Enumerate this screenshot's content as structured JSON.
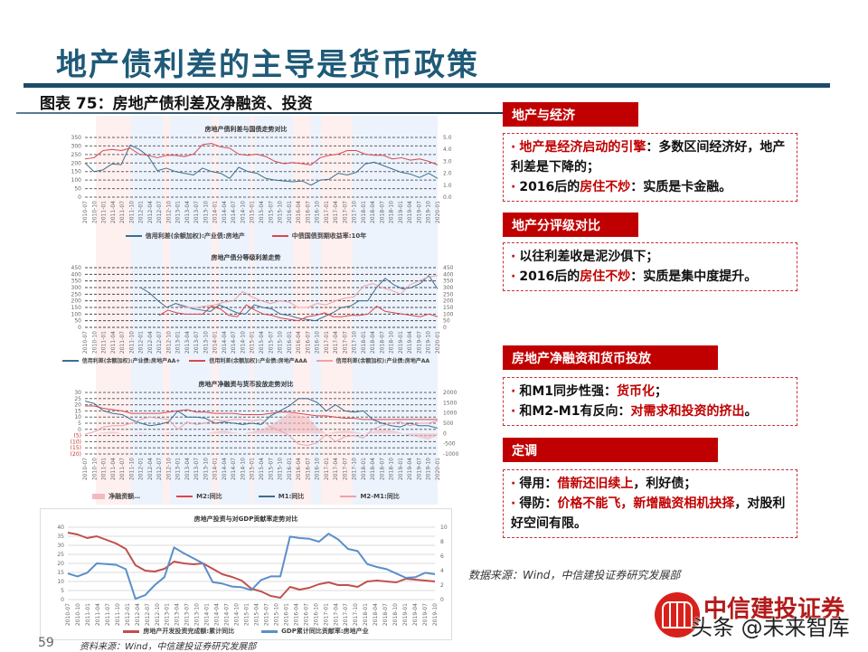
{
  "slide": {
    "title": "地产债利差的主导是货币政策",
    "figure_caption": "图表 75：房地产债利差及净融资、投资",
    "page_number": "59",
    "source_bottom": "资料来源：Wind，中信建投证券研究发展部",
    "source_right": "数据来源：Wind，中信建投证券研究发展部",
    "logo_text": "中信建投证券",
    "watermark": "头条 @未来智库"
  },
  "colors": {
    "title_blue": "#1f5a78",
    "rule_navy": "#1c4c68",
    "header_red": "#c00000",
    "series_blue": "#3d6e8f",
    "series_red": "#d9474f",
    "series_pink": "#f0a0a8",
    "series_blue_light": "#5b8fc9"
  },
  "sections": [
    {
      "header": "地产与经济",
      "bullets": [
        {
          "segments": [
            {
              "text": "地产是经济启动的引擎",
              "highlight": true
            },
            {
              "text": "：多数区间经济好，地产利差是下降的；",
              "highlight": false
            }
          ]
        },
        {
          "segments": [
            {
              "text": "2016后的",
              "highlight": false
            },
            {
              "text": "房住不炒",
              "highlight": true
            },
            {
              "text": "：实质是卡金融。",
              "highlight": false
            }
          ]
        }
      ]
    },
    {
      "header": "地产分评级对比",
      "bullets": [
        {
          "segments": [
            {
              "text": "以往利差收是泥沙俱下；",
              "highlight": false
            }
          ]
        },
        {
          "segments": [
            {
              "text": "2016后的",
              "highlight": false
            },
            {
              "text": "房住不炒",
              "highlight": true
            },
            {
              "text": "：实质是集中度提升。",
              "highlight": false
            }
          ]
        }
      ]
    },
    {
      "header": "房地产净融资和货币投放",
      "bullets": [
        {
          "segments": [
            {
              "text": "和M1同步性强：",
              "highlight": false
            },
            {
              "text": "货币化",
              "highlight": true
            },
            {
              "text": "；",
              "highlight": false
            }
          ]
        },
        {
          "segments": [
            {
              "text": "和M2-M1有反向：",
              "highlight": false
            },
            {
              "text": "对需求和投资的挤出",
              "highlight": true
            },
            {
              "text": "。",
              "highlight": false
            }
          ]
        }
      ]
    },
    {
      "header": "定调",
      "bullets": [
        {
          "segments": [
            {
              "text": "得用：",
              "highlight": false
            },
            {
              "text": "借新还旧续上",
              "highlight": true
            },
            {
              "text": "，利好债；",
              "highlight": false
            }
          ]
        },
        {
          "segments": [
            {
              "text": "得防：",
              "highlight": false
            },
            {
              "text": "价格不能飞，新增融资相机抉择",
              "highlight": true
            },
            {
              "text": "，对股利好空间有限。",
              "highlight": false
            }
          ]
        }
      ]
    }
  ],
  "chart_data": [
    {
      "type": "line",
      "title": "房地产债利差与国债走势对比",
      "x_ticks": [
        "2010-07",
        "2010-10",
        "2011-01",
        "2011-04",
        "2011-07",
        "2011-10",
        "2012-01",
        "2012-04",
        "2012-07",
        "2012-10",
        "2013-01",
        "2013-04",
        "2013-07",
        "2013-10",
        "2014-01",
        "2014-04",
        "2014-07",
        "2014-10",
        "2015-01",
        "2015-04",
        "2015-07",
        "2015-10",
        "2016-01",
        "2016-04",
        "2016-07",
        "2016-10",
        "2017-01",
        "2017-04",
        "2017-07",
        "2017-10",
        "2018-01",
        "2018-04",
        "2018-07",
        "2018-10",
        "2019-01",
        "2019-04",
        "2019-07",
        "2019-10",
        "2020-01"
      ],
      "y_left": {
        "min": 0,
        "max": 350,
        "ticks": [
          0,
          50,
          100,
          150,
          200,
          250,
          300,
          350
        ]
      },
      "y_right": {
        "min": 0,
        "max": 5,
        "ticks": [
          "0.0",
          "1.0",
          "2.0",
          "3.0",
          "4.0",
          "5.0"
        ]
      },
      "series": [
        {
          "name": "信用利差(余额加权):产业债:房地产",
          "axis": "left",
          "values": [
            200,
            150,
            160,
            195,
            190,
            305,
            280,
            240,
            155,
            170,
            150,
            140,
            130,
            170,
            150,
            140,
            110,
            175,
            150,
            140,
            110,
            100,
            95,
            90,
            95,
            70,
            100,
            105,
            140,
            130,
            145,
            195,
            205,
            185,
            165,
            145,
            135,
            115,
            140,
            110
          ]
        },
        {
          "name": "中债国债到期收益率:10年",
          "axis": "right",
          "values": [
            3.2,
            3.3,
            3.9,
            4.0,
            3.9,
            4.1,
            3.6,
            3.5,
            3.3,
            3.5,
            3.5,
            3.4,
            3.6,
            4.4,
            4.5,
            4.2,
            4.1,
            3.6,
            3.5,
            3.6,
            3.4,
            3.0,
            2.8,
            2.9,
            2.8,
            2.7,
            3.3,
            3.5,
            3.6,
            3.9,
            3.9,
            3.6,
            3.5,
            3.5,
            3.2,
            3.3,
            3.1,
            3.2,
            3.0,
            2.7
          ]
        }
      ],
      "grid": true,
      "legend_position": "bottom"
    },
    {
      "type": "line",
      "title": "房地产债分等级利差走势",
      "x_ticks": [
        "2010-07",
        "2010-10",
        "2011-01",
        "2011-04",
        "2011-07",
        "2011-10",
        "2012-01",
        "2012-04",
        "2012-07",
        "2012-10",
        "2013-01",
        "2013-04",
        "2013-07",
        "2013-10",
        "2014-01",
        "2014-04",
        "2014-07",
        "2014-10",
        "2015-01",
        "2015-04",
        "2015-07",
        "2015-10",
        "2016-01",
        "2016-04",
        "2016-07",
        "2016-10",
        "2017-01",
        "2017-04",
        "2017-07",
        "2017-10",
        "2018-01",
        "2018-04",
        "2018-07",
        "2018-10",
        "2019-01",
        "2019-04",
        "2019-07",
        "2019-10",
        "2020-01"
      ],
      "y_left": {
        "min": 0,
        "max": 450,
        "ticks": [
          0,
          50,
          100,
          150,
          200,
          250,
          300,
          350,
          400,
          450
        ]
      },
      "y_right": {
        "min": 0,
        "max": 450,
        "ticks": [
          0,
          50,
          100,
          150,
          200,
          250,
          300,
          350,
          400,
          450
        ]
      },
      "series": [
        {
          "name": "信用利差(余额加权):产业债:房地产AA+",
          "axis": "left",
          "start_index": 6,
          "values": [
            300,
            260,
            200,
            150,
            180,
            160,
            140,
            130,
            120,
            170,
            140,
            110,
            100,
            170,
            150,
            140,
            100,
            90,
            70,
            60,
            50,
            80,
            110,
            150,
            160,
            200,
            200,
            300,
            370,
            320,
            290,
            300,
            330,
            390,
            290
          ]
        },
        {
          "name": "信用利差(余额加权):产业债:房地产AAA",
          "axis": "left",
          "start_index": 8,
          "values": [
            90,
            130,
            110,
            100,
            100,
            100,
            160,
            140,
            90,
            80,
            170,
            130,
            100,
            90,
            70,
            60,
            50,
            80,
            90,
            110,
            80,
            80,
            90,
            90,
            100,
            160,
            120,
            110,
            100,
            90,
            80,
            100,
            80
          ]
        },
        {
          "name": "信用利差(余额加权):产业债:房地产AA",
          "axis": "left",
          "start_index": 10,
          "values": [
            160,
            150,
            150,
            160,
            170,
            190,
            200,
            270,
            230,
            200,
            180,
            200,
            190,
            150,
            150,
            180,
            170,
            200,
            220,
            230,
            310,
            330,
            300,
            280,
            250,
            320,
            350,
            380,
            390
          ]
        }
      ],
      "grid": true,
      "legend_position": "bottom"
    },
    {
      "type": "line",
      "title": "房地产净融资与货币投放走势对比",
      "x_ticks": [
        "2010-07",
        "2010-10",
        "2011-01",
        "2011-04",
        "2011-07",
        "2011-10",
        "2012-01",
        "2012-04",
        "2012-07",
        "2012-10",
        "2013-01",
        "2013-04",
        "2013-07",
        "2013-10",
        "2014-01",
        "2014-04",
        "2014-07",
        "2014-10",
        "2015-01",
        "2015-04",
        "2015-07",
        "2015-10",
        "2016-01",
        "2016-04",
        "2016-07",
        "2016-10",
        "2017-01",
        "2017-04",
        "2017-07",
        "2017-10",
        "2018-01",
        "2018-04",
        "2018-07",
        "2018-10",
        "2019-01",
        "2019-04",
        "2019-07",
        "2019-10",
        "2020-01"
      ],
      "y_left": {
        "min": -20,
        "max": 30,
        "ticks": [
          "(20)",
          "(15)",
          "(10)",
          "(5)",
          "0",
          "5",
          "10",
          "15",
          "20",
          "25",
          "30"
        ]
      },
      "y_right": {
        "min": -1000,
        "max": 2000,
        "ticks": [
          -1000,
          -500,
          0,
          500,
          1000,
          1500,
          2000
        ]
      },
      "series": [
        {
          "name": "净融资额",
          "type": "area",
          "axis": "right",
          "values": [
            0,
            0,
            50,
            100,
            0,
            0,
            50,
            0,
            0,
            50,
            0,
            0,
            0,
            0,
            100,
            150,
            50,
            0,
            100,
            200,
            400,
            700,
            1000,
            900,
            800,
            300,
            0,
            100,
            150,
            100,
            0,
            100,
            200,
            150,
            50,
            -100,
            -200,
            -300,
            -100
          ]
        },
        {
          "name": "M2:同比",
          "axis": "left",
          "values": [
            19,
            19,
            17,
            16,
            15,
            13,
            13,
            13,
            13,
            14,
            15,
            16,
            14,
            14,
            13,
            13,
            13,
            12,
            12,
            12,
            13,
            14,
            14,
            13,
            12,
            11,
            11,
            10,
            9,
            9,
            8,
            8,
            8,
            8,
            8,
            8,
            8,
            8,
            8
          ]
        },
        {
          "name": "M1:同比",
          "axis": "left",
          "values": [
            23,
            21,
            15,
            13,
            12,
            8,
            5,
            3,
            4,
            6,
            15,
            10,
            10,
            9,
            5,
            6,
            5,
            4,
            5,
            4,
            11,
            15,
            19,
            25,
            25,
            22,
            15,
            20,
            15,
            14,
            15,
            8,
            5,
            3,
            2,
            5,
            3,
            3,
            1
          ]
        },
        {
          "name": "M2-M1:同比",
          "axis": "left",
          "values": [
            -4,
            -2,
            2,
            3,
            3,
            5,
            8,
            10,
            9,
            8,
            0,
            6,
            4,
            5,
            8,
            7,
            8,
            8,
            7,
            8,
            2,
            -1,
            -5,
            -12,
            -13,
            -11,
            -4,
            -10,
            -6,
            -5,
            -7,
            0,
            3,
            5,
            6,
            3,
            5,
            5,
            7
          ]
        }
      ],
      "grid": true,
      "legend_position": "bottom"
    },
    {
      "type": "line",
      "title": "房地产投资与对GDP贡献率走势对比",
      "x_ticks": [
        "2010-07",
        "2010-10",
        "2011-01",
        "2011-04",
        "2011-07",
        "2011-10",
        "2012-01",
        "2012-04",
        "2012-07",
        "2012-10",
        "2013-01",
        "2013-04",
        "2013-07",
        "2013-10",
        "2014-01",
        "2014-04",
        "2014-07",
        "2014-10",
        "2015-01",
        "2015-04",
        "2015-07",
        "2015-10",
        "2016-01",
        "2016-04",
        "2016-07",
        "2016-10",
        "2017-01",
        "2017-04",
        "2017-07",
        "2017-10",
        "2018-01",
        "2018-04",
        "2018-07",
        "2018-10",
        "2019-01",
        "2019-04",
        "2019-07",
        "2019-10"
      ],
      "y_left": {
        "min": 0,
        "max": 40,
        "ticks": [
          0,
          5,
          10,
          15,
          20,
          25,
          30,
          35,
          40
        ]
      },
      "y_right": {
        "min": 0,
        "max": 10,
        "ticks": [
          0,
          2,
          4,
          6,
          8,
          10
        ]
      },
      "series": [
        {
          "name": "房地产开发投资完成额:累计同比",
          "axis": "left",
          "values": [
            37,
            36,
            34,
            35,
            33,
            31,
            28,
            19,
            16,
            15.5,
            17,
            21,
            20,
            19.5,
            20,
            17,
            14,
            12.5,
            10.5,
            6,
            4.5,
            2,
            1,
            7,
            5.5,
            6.5,
            8.5,
            9.5,
            8,
            8,
            7,
            10,
            10.5,
            10,
            9.5,
            11.5,
            11,
            10.5,
            10
          ]
        },
        {
          "name": "GDP累计同比贡献率:房地产业",
          "axis": "right",
          "values": [
            3.6,
            3.2,
            3.7,
            5.0,
            4.9,
            4.8,
            4.2,
            0.1,
            0.6,
            2.0,
            3.1,
            7.2,
            6.4,
            5.7,
            5.0,
            2.4,
            2.2,
            1.8,
            1.7,
            1.3,
            2.7,
            3.2,
            3.2,
            8.7,
            8.5,
            8.4,
            8.0,
            9.1,
            8.3,
            7.0,
            6.7,
            4.9,
            4.5,
            4.2,
            3.6,
            3.0,
            3.1,
            3.7,
            3.5
          ]
        }
      ],
      "grid": true,
      "legend_position": "bottom"
    }
  ],
  "chart_legends": {
    "c1": [
      "信用利差(余额加权):产业债:房地产",
      "中债国债到期收益率:10年"
    ],
    "c2": [
      "信用利差(余额加权):产业债:房地产AA+",
      "信用利差(余额加权):产业债:房地产AAA",
      "信用利差(余额加权):产业债:房地产AA"
    ],
    "c3": [
      "净融资额…",
      "M2:同比",
      "M1:同比",
      "M2-M1:同比"
    ],
    "c4": [
      "房地产开发投资完成额:累计同比",
      "GDP累计同比贡献率:房地产业"
    ]
  }
}
